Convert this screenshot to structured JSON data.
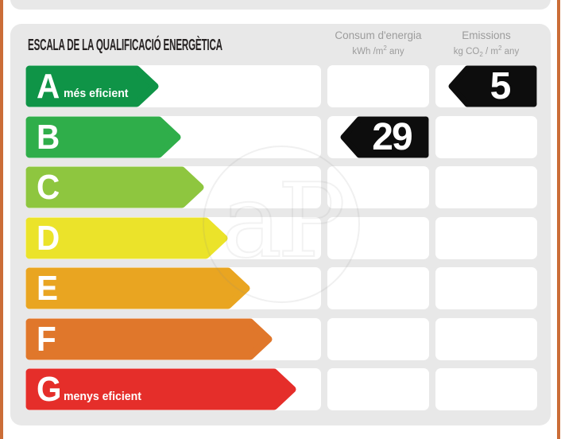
{
  "header": {
    "title": "ESCALA DE LA QUALIFICACIÓ ENERGÈTICA"
  },
  "columns": {
    "consum": {
      "title": "Consum d'energia",
      "unit_a": "kWh /m",
      "unit_sup": "2",
      "unit_b": " any"
    },
    "emissions": {
      "title": "Emissions",
      "unit_a": "kg CO",
      "unit_sub": "2",
      "unit_b": " / m",
      "unit_sup": "2",
      "unit_c": " any"
    }
  },
  "scale": {
    "rows": [
      {
        "letter": "A",
        "note": "més eficient",
        "color": "#0f9447",
        "arrow_width": 168
      },
      {
        "letter": "B",
        "note": "",
        "color": "#2fae4a",
        "arrow_width": 196
      },
      {
        "letter": "C",
        "note": "",
        "color": "#8ec63f",
        "arrow_width": 225
      },
      {
        "letter": "D",
        "note": "",
        "color": "#ebe32a",
        "arrow_width": 255
      },
      {
        "letter": "E",
        "note": "",
        "color": "#e9a521",
        "arrow_width": 283
      },
      {
        "letter": "F",
        "note": "",
        "color": "#e0772b",
        "arrow_width": 311
      },
      {
        "letter": "G",
        "note": "menys eficient",
        "color": "#e52e2a",
        "arrow_width": 341
      }
    ]
  },
  "ratings": [
    {
      "column": "consum",
      "row_letter": "B",
      "value": "29"
    },
    {
      "column": "emissions",
      "row_letter": "A",
      "value": "5"
    }
  ],
  "watermark": {
    "text": "aP"
  },
  "colors": {
    "panel": "#e8e8e8",
    "border_orange": "#cb6d37",
    "tag_black": "#0d0d0d",
    "header_gray": "#9c9c9c"
  },
  "chart_data": {
    "type": "bar",
    "title": "ESCALA DE LA QUALIFICACIÓ ENERGÈTICA",
    "categories": [
      "A",
      "B",
      "C",
      "D",
      "E",
      "F",
      "G"
    ],
    "category_notes": {
      "A": "més eficient",
      "G": "menys eficient"
    },
    "category_colors": [
      "#0f9447",
      "#2fae4a",
      "#8ec63f",
      "#ebe32a",
      "#e9a521",
      "#e0772b",
      "#e52e2a"
    ],
    "series": [
      {
        "name": "Consum d'energia (kWh /m2 any)",
        "rating": "B",
        "value": 29
      },
      {
        "name": "Emissions (kg CO2 / m2 any)",
        "rating": "A",
        "value": 5
      }
    ],
    "legend_position": "top",
    "grid": false
  }
}
